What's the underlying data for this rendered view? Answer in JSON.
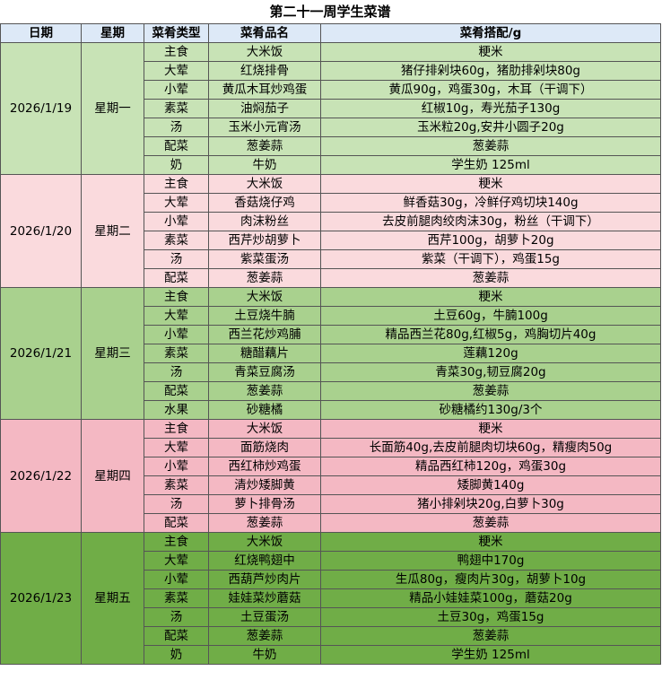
{
  "header": {
    "title": "第二十一周学生菜谱"
  },
  "table": {
    "columns": [
      "日期",
      "星期",
      "菜肴类型",
      "菜肴品名",
      "菜肴搭配/g"
    ],
    "days": [
      {
        "date": "2026/1/19",
        "weekday": "星期一",
        "rows": [
          [
            "主食",
            "大米饭",
            "粳米"
          ],
          [
            "大荤",
            "红烧排骨",
            "猪仔排剁块60g，猪肋排剁块80g"
          ],
          [
            "小荤",
            "黄瓜木耳炒鸡蛋",
            "黄瓜90g，鸡蛋30g，木耳（干调下）"
          ],
          [
            "素菜",
            "油焖茄子",
            "红椒10g，寿光茄子130g"
          ],
          [
            "汤",
            "玉米小元宵汤",
            "玉米粒20g,安井小圆子20g"
          ],
          [
            "配菜",
            "葱姜蒜",
            "葱姜蒜"
          ],
          [
            "奶",
            "牛奶",
            "学生奶 125ml"
          ]
        ]
      },
      {
        "date": "2026/1/20",
        "weekday": "星期二",
        "rows": [
          [
            "主食",
            "大米饭",
            "粳米"
          ],
          [
            "大荤",
            "香菇烧仔鸡",
            "鲜香菇30g，冷鲜仔鸡切块140g"
          ],
          [
            "小荤",
            "肉沫粉丝",
            "去皮前腿肉绞肉沫30g，粉丝（干调下）"
          ],
          [
            "素菜",
            "西芹炒胡萝卜",
            "西芹100g，胡萝卜20g"
          ],
          [
            "汤",
            "紫菜蛋汤",
            "紫菜（干调下），鸡蛋15g"
          ],
          [
            "配菜",
            "葱姜蒜",
            "葱姜蒜"
          ]
        ]
      },
      {
        "date": "2026/1/21",
        "weekday": "星期三",
        "rows": [
          [
            "主食",
            "大米饭",
            "粳米"
          ],
          [
            "大荤",
            "土豆烧牛腩",
            "土豆60g，牛腩100g"
          ],
          [
            "小荤",
            "西兰花炒鸡脯",
            "精品西兰花80g,红椒5g，鸡胸切片40g"
          ],
          [
            "素菜",
            "糖醋藕片",
            "莲藕120g"
          ],
          [
            "汤",
            "青菜豆腐汤",
            "青菜30g,韧豆腐20g"
          ],
          [
            "配菜",
            "葱姜蒜",
            "葱姜蒜"
          ],
          [
            "水果",
            "砂糖橘",
            "砂糖橘约130g/3个"
          ]
        ]
      },
      {
        "date": "2026/1/22",
        "weekday": "星期四",
        "rows": [
          [
            "主食",
            "大米饭",
            "粳米"
          ],
          [
            "大荤",
            "面筋烧肉",
            "长面筋40g,去皮前腿肉切块60g，精瘦肉50g"
          ],
          [
            "小荤",
            "西红柿炒鸡蛋",
            "精品西红柿120g，鸡蛋30g"
          ],
          [
            "素菜",
            "清炒矮脚黄",
            "矮脚黄140g"
          ],
          [
            "汤",
            "萝卜排骨汤",
            "猪小排剁块20g,白萝卜30g"
          ],
          [
            "配菜",
            "葱姜蒜",
            "葱姜蒜"
          ]
        ]
      },
      {
        "date": "2026/1/23",
        "weekday": "星期五",
        "rows": [
          [
            "主食",
            "大米饭",
            "粳米"
          ],
          [
            "大荤",
            "红烧鸭翅中",
            "鸭翅中170g"
          ],
          [
            "小荤",
            "西葫芦炒肉片",
            "生瓜80g，瘦肉片30g，胡萝卜10g"
          ],
          [
            "素菜",
            "娃娃菜炒蘑菇",
            "精品小娃娃菜100g，蘑菇20g"
          ],
          [
            "汤",
            "土豆蛋汤",
            "土豆30g，鸡蛋15g"
          ],
          [
            "配菜",
            "葱姜蒜",
            "葱姜蒜"
          ],
          [
            "奶",
            "牛奶",
            "学生奶 125ml"
          ]
        ]
      }
    ]
  }
}
